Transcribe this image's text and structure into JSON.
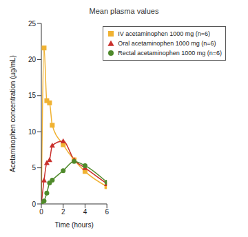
{
  "chart_data": {
    "type": "line",
    "title": "Mean plasma values",
    "x_label": "Time (hours)",
    "y_label": "Acetaminophen concentration (µg/mL)",
    "x": [
      0,
      0.25,
      0.5,
      0.75,
      1,
      2,
      3,
      4,
      6
    ],
    "series": [
      {
        "name": "IV acetaminophen 1000 mg (n=6)",
        "color": "#f0b232",
        "marker": "square",
        "values": [
          0,
          21.6,
          14.3,
          14.0,
          10.9,
          8.2,
          6.1,
          4.5,
          2.4
        ]
      },
      {
        "name": "Oral acetaminophen 1000 mg (n=6)",
        "color": "#c9302c",
        "marker": "triangle",
        "values": [
          0,
          3.3,
          5.7,
          6.1,
          8.1,
          8.7,
          6.1,
          5.0,
          2.8
        ]
      },
      {
        "name": "Rectal acetaminophen 1000 mg (n=6)",
        "color": "#4f8a2b",
        "marker": "circle",
        "values": [
          0,
          0.4,
          1.5,
          2.9,
          3.3,
          4.6,
          5.9,
          5.3,
          3.0
        ]
      }
    ],
    "xlim": [
      0,
      6
    ],
    "xticks": [
      0,
      2,
      4,
      6
    ],
    "ylim": [
      0,
      25
    ],
    "yticks": [
      0,
      5,
      10,
      15,
      20,
      25
    ],
    "grid": false,
    "legend": "upper right"
  }
}
